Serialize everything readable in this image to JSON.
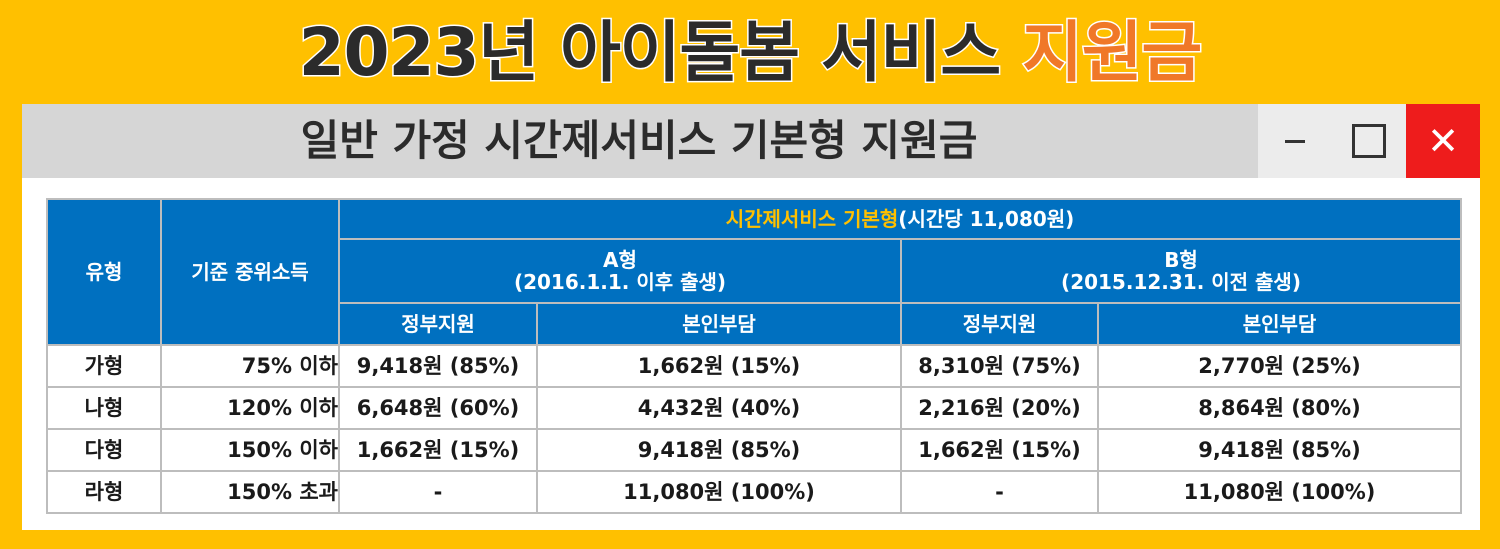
{
  "banner": {
    "title_dark": "2023년 아이돌봄 서비스",
    "title_accent": "지원금",
    "accent_color": "#F07828",
    "background_color": "#FFC000"
  },
  "window": {
    "title": "일반 가정 시간제서비스 기본형 지원금",
    "controls": {
      "minimize_icon": "minimize-icon",
      "maximize_icon": "maximize-icon",
      "close_icon": "close-icon",
      "close_glyph": "✕",
      "close_color": "#EE1C1C"
    }
  },
  "table": {
    "header_color": "#0070C0",
    "headers": {
      "type": "유형",
      "income": "기준 중위소득",
      "service_highlight": "시간제서비스 기본형",
      "service_rate": "(시간당 11,080원)",
      "groupA_name": "A형",
      "groupA_sub": "(2016.1.1. 이후 출생)",
      "groupB_name": "B형",
      "groupB_sub": "(2015.12.31. 이전 출생)",
      "gov": "정부지원",
      "self": "본인부담"
    },
    "rows": [
      {
        "type": "가형",
        "income": "75% 이하",
        "a_gov": "9,418원 (85%)",
        "a_self": "1,662원 (15%)",
        "b_gov": "8,310원 (75%)",
        "b_self": "2,770원 (25%)"
      },
      {
        "type": "나형",
        "income": "120% 이하",
        "a_gov": "6,648원 (60%)",
        "a_self": "4,432원 (40%)",
        "b_gov": "2,216원 (20%)",
        "b_self": "8,864원 (80%)"
      },
      {
        "type": "다형",
        "income": "150% 이하",
        "a_gov": "1,662원 (15%)",
        "a_self": "9,418원 (85%)",
        "b_gov": "1,662원 (15%)",
        "b_self": "9,418원 (85%)"
      },
      {
        "type": "라형",
        "income": "150% 초과",
        "a_gov": "-",
        "a_self": "11,080원 (100%)",
        "b_gov": "-",
        "b_self": "11,080원 (100%)"
      }
    ]
  }
}
